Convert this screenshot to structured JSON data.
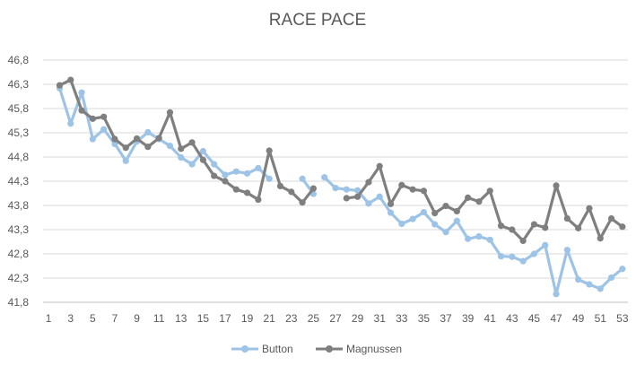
{
  "chart_data": {
    "type": "line",
    "title": "RACE PACE",
    "xlabel": "",
    "ylabel": "",
    "ylim": [
      41.8,
      46.8
    ],
    "yticks": [
      "41,8",
      "42,3",
      "42,8",
      "43,3",
      "43,8",
      "44,3",
      "44,8",
      "45,3",
      "45,8",
      "46,3",
      "46,8"
    ],
    "ytick_values": [
      41.8,
      42.3,
      42.8,
      43.3,
      43.8,
      44.3,
      44.8,
      45.3,
      45.8,
      46.3,
      46.8
    ],
    "xticks": [
      1,
      3,
      5,
      7,
      9,
      11,
      13,
      15,
      17,
      19,
      21,
      23,
      25,
      27,
      29,
      31,
      33,
      35,
      37,
      39,
      41,
      43,
      45,
      47,
      49,
      51,
      53
    ],
    "xlim": [
      1,
      53
    ],
    "grid": "horizontal",
    "legend": "bottom",
    "series": [
      {
        "name": "Button",
        "color": "#9DC3E6",
        "points": [
          [
            2,
            46.22
          ],
          [
            3,
            45.49
          ],
          [
            4,
            46.13
          ],
          [
            5,
            45.17
          ],
          [
            6,
            45.37
          ],
          [
            7,
            45.07
          ],
          [
            8,
            44.72
          ],
          [
            9,
            45.12
          ],
          [
            10,
            45.31
          ],
          [
            11,
            45.17
          ],
          [
            12,
            45.03
          ],
          [
            13,
            44.79
          ],
          [
            14,
            44.65
          ],
          [
            15,
            44.92
          ],
          [
            16,
            44.65
          ],
          [
            17,
            44.43
          ],
          [
            18,
            44.5
          ],
          [
            19,
            44.46
          ],
          [
            20,
            44.57
          ],
          [
            21,
            44.35
          ],
          null,
          [
            24,
            44.35
          ],
          [
            25,
            44.04
          ],
          null,
          [
            26,
            44.38
          ],
          [
            27,
            44.16
          ],
          [
            28,
            44.13
          ],
          [
            29,
            44.11
          ],
          [
            30,
            43.84
          ],
          [
            31,
            43.98
          ],
          [
            32,
            43.65
          ],
          [
            33,
            43.42
          ],
          [
            34,
            43.52
          ],
          [
            35,
            43.66
          ],
          [
            36,
            43.41
          ],
          [
            37,
            43.25
          ],
          [
            38,
            43.48
          ],
          [
            39,
            43.11
          ],
          [
            40,
            43.16
          ],
          [
            41,
            43.09
          ],
          [
            42,
            42.75
          ],
          [
            43,
            42.74
          ],
          [
            44,
            42.65
          ],
          [
            45,
            42.8
          ],
          [
            46,
            42.98
          ],
          [
            47,
            41.97
          ],
          [
            48,
            42.88
          ],
          [
            49,
            42.27
          ],
          [
            50,
            42.17
          ],
          [
            51,
            42.08
          ],
          [
            52,
            42.31
          ],
          [
            53,
            42.49
          ]
        ]
      },
      {
        "name": "Magnussen",
        "color": "#7F7F7F",
        "points": [
          [
            2,
            46.28
          ],
          [
            3,
            46.39
          ],
          [
            4,
            45.76
          ],
          [
            5,
            45.59
          ],
          [
            6,
            45.63
          ],
          [
            7,
            45.17
          ],
          [
            8,
            44.99
          ],
          [
            9,
            45.18
          ],
          [
            10,
            45.01
          ],
          [
            11,
            45.19
          ],
          [
            12,
            45.72
          ],
          [
            13,
            44.97
          ],
          [
            14,
            45.1
          ],
          [
            15,
            44.74
          ],
          [
            16,
            44.41
          ],
          [
            17,
            44.3
          ],
          [
            18,
            44.13
          ],
          [
            19,
            44.06
          ],
          [
            20,
            43.92
          ],
          [
            21,
            44.93
          ],
          [
            22,
            44.2
          ],
          [
            23,
            44.08
          ],
          [
            24,
            43.86
          ],
          [
            25,
            44.15
          ],
          null,
          [
            28,
            43.95
          ],
          [
            29,
            43.98
          ],
          [
            30,
            44.28
          ],
          [
            31,
            44.61
          ],
          [
            32,
            43.83
          ],
          [
            33,
            44.22
          ],
          [
            34,
            44.13
          ],
          [
            35,
            44.1
          ],
          [
            36,
            43.64
          ],
          [
            37,
            43.79
          ],
          [
            38,
            43.68
          ],
          [
            39,
            43.96
          ],
          [
            40,
            43.88
          ],
          [
            41,
            44.1
          ],
          [
            42,
            43.38
          ],
          [
            43,
            43.3
          ],
          [
            44,
            43.07
          ],
          [
            45,
            43.41
          ],
          [
            46,
            43.34
          ],
          [
            47,
            44.21
          ],
          [
            48,
            43.53
          ],
          [
            49,
            43.33
          ],
          [
            50,
            43.74
          ],
          [
            51,
            43.12
          ],
          [
            52,
            43.53
          ],
          [
            53,
            43.36
          ]
        ]
      }
    ]
  }
}
